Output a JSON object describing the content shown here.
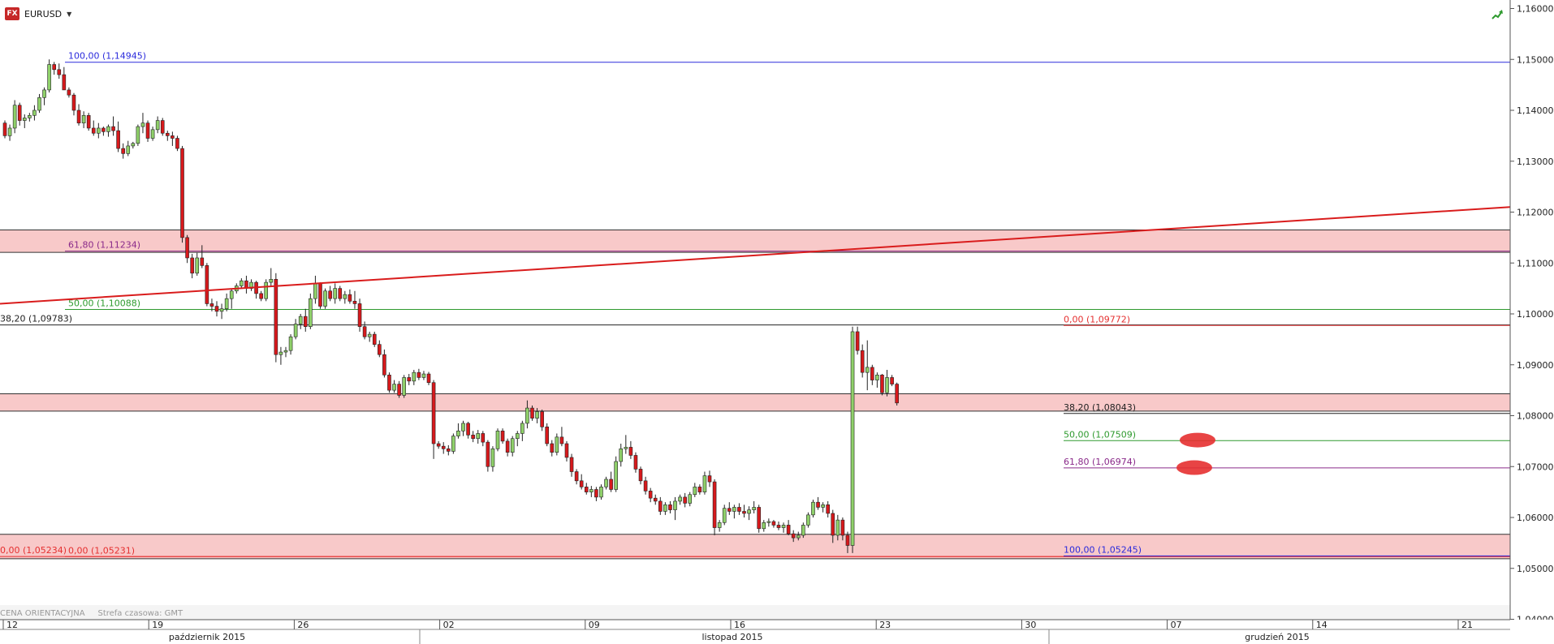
{
  "symbol": {
    "logo": "FX",
    "name": "EURUSD"
  },
  "footer": {
    "price_type": "CENA ORIENTACYJNA",
    "timezone": "Strefa czasowa: GMT"
  },
  "icons": {
    "trend": "trend-arrow-icon",
    "dropdown": "caret-down-icon"
  },
  "colors": {
    "bull": "#8fd06a",
    "bear": "#d7191c",
    "zone": "#f8c9c9",
    "fib_blue": "#2b2bdc",
    "fib_red": "#e53030",
    "fib_green": "#2e9a2e",
    "fib_purple": "#8a2a8a",
    "trendline": "#d91c1c"
  },
  "chart_data": {
    "type": "candlestick",
    "title": "EURUSD",
    "y_axis": {
      "min": 1.04,
      "max": 1.16,
      "ticks": [
        "1,04000",
        "1,05000",
        "1,06000",
        "1,07000",
        "1,08000",
        "1,09000",
        "1,10000",
        "1,11000",
        "1,12000",
        "1,13000",
        "1,14000",
        "1,15000",
        "1,16000"
      ]
    },
    "x_ticks": [
      "12",
      "19",
      "26",
      "02",
      "09",
      "16",
      "23",
      "30",
      "07",
      "14",
      "21"
    ],
    "months": [
      "październik 2015",
      "listopad 2015",
      "grudzień 2015"
    ],
    "zones": [
      {
        "from": 1.1121,
        "to": 1.1165
      },
      {
        "from": 1.0809,
        "to": 1.0843
      },
      {
        "from": 1.0519,
        "to": 1.0567
      }
    ],
    "levels": [
      {
        "label": "100,00 (1,14945)",
        "value": 1.14945,
        "color": "fib_blue",
        "label_side": "left"
      },
      {
        "label": "61,80 (1,11234)",
        "value": 1.11234,
        "color": "fib_purple",
        "label_side": "left"
      },
      {
        "label": "50,00 (1,10088)",
        "value": 1.10088,
        "color": "fib_green",
        "label_side": "left"
      },
      {
        "label": "38,20 (1,09783)",
        "value": 1.09783,
        "color": "black",
        "label_side": "edge"
      },
      {
        "label": "0,00 (1,05234)",
        "value": 1.05234,
        "color": "fib_red",
        "label_side": "edge"
      },
      {
        "label": "0,00 (1,05231)",
        "value": 1.05231,
        "color": "fib_red",
        "label_side": "left"
      },
      {
        "label": "0,00 (1,09772)",
        "value": 1.09772,
        "color": "fib_red",
        "label_side": "right"
      },
      {
        "label": "38,20 (1,08043)",
        "value": 1.08043,
        "color": "black",
        "label_side": "right"
      },
      {
        "label": "50,00 (1,07509)",
        "value": 1.07509,
        "color": "fib_green",
        "label_side": "right"
      },
      {
        "label": "61,80 (1,06974)",
        "value": 1.06974,
        "color": "fib_purple",
        "label_side": "right"
      },
      {
        "label": "100,00 (1,05245)",
        "value": 1.05245,
        "color": "fib_blue",
        "label_side": "right"
      }
    ],
    "trendline": {
      "start": 1.102,
      "end": 1.121
    },
    "targets": [
      1.0752,
      1.0698
    ],
    "candles": [
      [
        1.1375,
        1.138,
        1.1345,
        1.135
      ],
      [
        1.135,
        1.1372,
        1.134,
        1.1365
      ],
      [
        1.1365,
        1.142,
        1.1355,
        1.141
      ],
      [
        1.141,
        1.1415,
        1.137,
        1.138
      ],
      [
        1.138,
        1.1392,
        1.1365,
        1.1385
      ],
      [
        1.1385,
        1.1395,
        1.1378,
        1.139
      ],
      [
        1.139,
        1.141,
        1.138,
        1.14
      ],
      [
        1.14,
        1.1432,
        1.1395,
        1.1425
      ],
      [
        1.1425,
        1.1445,
        1.141,
        1.144
      ],
      [
        1.144,
        1.15,
        1.1435,
        1.149
      ],
      [
        1.149,
        1.1495,
        1.147,
        1.148
      ],
      [
        1.148,
        1.1492,
        1.1462,
        1.147
      ],
      [
        1.147,
        1.1485,
        1.144,
        1.144
      ],
      [
        1.144,
        1.1445,
        1.1425,
        1.143
      ],
      [
        1.143,
        1.1434,
        1.139,
        1.14
      ],
      [
        1.14,
        1.1412,
        1.137,
        1.1375
      ],
      [
        1.1375,
        1.1398,
        1.1365,
        1.139
      ],
      [
        1.139,
        1.1395,
        1.136,
        1.1365
      ],
      [
        1.1365,
        1.138,
        1.135,
        1.1355
      ],
      [
        1.1355,
        1.1375,
        1.1345,
        1.1365
      ],
      [
        1.1365,
        1.1368,
        1.135,
        1.1358
      ],
      [
        1.1358,
        1.1372,
        1.1348,
        1.1368
      ],
      [
        1.1368,
        1.1388,
        1.135,
        1.136
      ],
      [
        1.136,
        1.1378,
        1.1318,
        1.1325
      ],
      [
        1.1325,
        1.1335,
        1.1305,
        1.1315
      ],
      [
        1.1315,
        1.134,
        1.131,
        1.133
      ],
      [
        1.133,
        1.1338,
        1.1325,
        1.1335
      ],
      [
        1.1335,
        1.1372,
        1.133,
        1.1368
      ],
      [
        1.1368,
        1.1395,
        1.1355,
        1.1375
      ],
      [
        1.1375,
        1.138,
        1.1338,
        1.1345
      ],
      [
        1.1345,
        1.1368,
        1.134,
        1.1362
      ],
      [
        1.1362,
        1.1388,
        1.1355,
        1.138
      ],
      [
        1.138,
        1.1385,
        1.135,
        1.1355
      ],
      [
        1.1355,
        1.136,
        1.134,
        1.135
      ],
      [
        1.135,
        1.1358,
        1.133,
        1.1345
      ],
      [
        1.1345,
        1.135,
        1.132,
        1.1325
      ],
      [
        1.1325,
        1.133,
        1.114,
        1.115
      ],
      [
        1.115,
        1.1155,
        1.11,
        1.111
      ],
      [
        1.111,
        1.1118,
        1.107,
        1.108
      ],
      [
        1.108,
        1.112,
        1.1075,
        1.111
      ],
      [
        1.111,
        1.1135,
        1.109,
        1.1095
      ],
      [
        1.1095,
        1.11,
        1.1015,
        1.102
      ],
      [
        1.102,
        1.103,
        1.1005,
        1.1015
      ],
      [
        1.1015,
        1.1025,
        1.0995,
        1.1005
      ],
      [
        1.1005,
        1.102,
        1.099,
        1.101
      ],
      [
        1.101,
        1.104,
        1.1005,
        1.103
      ],
      [
        1.103,
        1.105,
        1.101,
        1.1045
      ],
      [
        1.1045,
        1.106,
        1.104,
        1.1055
      ],
      [
        1.1055,
        1.107,
        1.105,
        1.1065
      ],
      [
        1.1065,
        1.1075,
        1.104,
        1.105
      ],
      [
        1.105,
        1.1068,
        1.1045,
        1.1062
      ],
      [
        1.1062,
        1.1065,
        1.103,
        1.104
      ],
      [
        1.104,
        1.1045,
        1.1025,
        1.103
      ],
      [
        1.103,
        1.1068,
        1.1025,
        1.1062
      ],
      [
        1.1062,
        1.109,
        1.1055,
        1.1068
      ],
      [
        1.1068,
        1.108,
        1.0905,
        1.092
      ],
      [
        1.092,
        1.0935,
        1.09,
        1.0925
      ],
      [
        1.0925,
        1.0935,
        1.0915,
        1.0928
      ],
      [
        1.0928,
        1.096,
        1.092,
        1.0955
      ],
      [
        1.0955,
        1.099,
        1.095,
        1.098
      ],
      [
        1.098,
        1.1,
        1.097,
        1.0995
      ],
      [
        1.0995,
        1.101,
        1.0965,
        1.0975
      ],
      [
        1.0975,
        1.104,
        1.097,
        1.103
      ],
      [
        1.103,
        1.1075,
        1.102,
        1.106
      ],
      [
        1.106,
        1.1062,
        1.101,
        1.1015
      ],
      [
        1.1015,
        1.105,
        1.101,
        1.1045
      ],
      [
        1.1045,
        1.1055,
        1.1025,
        1.103
      ],
      [
        1.103,
        1.106,
        1.102,
        1.105
      ],
      [
        1.105,
        1.1055,
        1.1025,
        1.103
      ],
      [
        1.103,
        1.1045,
        1.102,
        1.1038
      ],
      [
        1.1038,
        1.1048,
        1.102,
        1.1025
      ],
      [
        1.1025,
        1.1045,
        1.101,
        1.102
      ],
      [
        1.102,
        1.103,
        1.0965,
        1.0975
      ],
      [
        1.0975,
        1.0985,
        1.095,
        1.0955
      ],
      [
        1.0955,
        1.0965,
        1.0945,
        1.096
      ],
      [
        1.096,
        1.0965,
        1.0935,
        1.094
      ],
      [
        1.094,
        1.0948,
        1.0915,
        1.092
      ],
      [
        1.092,
        1.093,
        1.0875,
        1.088
      ],
      [
        1.088,
        1.0885,
        1.0845,
        1.085
      ],
      [
        1.085,
        1.087,
        1.0845,
        1.0862
      ],
      [
        1.0862,
        1.0868,
        1.0835,
        1.084
      ],
      [
        1.084,
        1.088,
        1.0835,
        1.0875
      ],
      [
        1.0875,
        1.0882,
        1.086,
        1.0868
      ],
      [
        1.0868,
        1.089,
        1.086,
        1.0885
      ],
      [
        1.0885,
        1.0892,
        1.087,
        1.0875
      ],
      [
        1.0875,
        1.0888,
        1.087,
        1.0882
      ],
      [
        1.0882,
        1.0886,
        1.086,
        1.0865
      ],
      [
        1.0865,
        1.087,
        1.0715,
        1.0745
      ],
      [
        1.0745,
        1.075,
        1.0735,
        1.074
      ],
      [
        1.074,
        1.0748,
        1.0725,
        1.0735
      ],
      [
        1.0735,
        1.0742,
        1.0722,
        1.073
      ],
      [
        1.073,
        1.0765,
        1.0725,
        1.076
      ],
      [
        1.076,
        1.0785,
        1.0755,
        1.077
      ],
      [
        1.077,
        1.079,
        1.076,
        1.0785
      ],
      [
        1.0785,
        1.0788,
        1.0755,
        1.0762
      ],
      [
        1.0762,
        1.077,
        1.0748,
        1.0755
      ],
      [
        1.0755,
        1.0772,
        1.0745,
        1.0765
      ],
      [
        1.0765,
        1.077,
        1.074,
        1.0748
      ],
      [
        1.0748,
        1.0752,
        1.069,
        1.07
      ],
      [
        1.07,
        1.074,
        1.069,
        1.0735
      ],
      [
        1.0735,
        1.0775,
        1.073,
        1.077
      ],
      [
        1.077,
        1.0775,
        1.0745,
        1.075
      ],
      [
        1.075,
        1.0755,
        1.072,
        1.0728
      ],
      [
        1.0728,
        1.076,
        1.072,
        1.0755
      ],
      [
        1.0755,
        1.077,
        1.074,
        1.0765
      ],
      [
        1.0765,
        1.079,
        1.075,
        1.0785
      ],
      [
        1.0785,
        1.083,
        1.0775,
        1.0815
      ],
      [
        1.0815,
        1.082,
        1.079,
        1.0795
      ],
      [
        1.0795,
        1.0815,
        1.0785,
        1.0808
      ],
      [
        1.0808,
        1.0812,
        1.077,
        1.0778
      ],
      [
        1.0778,
        1.0785,
        1.074,
        1.0745
      ],
      [
        1.0745,
        1.0752,
        1.072,
        1.0728
      ],
      [
        1.0728,
        1.0765,
        1.0722,
        1.0758
      ],
      [
        1.0758,
        1.0778,
        1.074,
        1.0745
      ],
      [
        1.0745,
        1.075,
        1.071,
        1.0718
      ],
      [
        1.0718,
        1.0725,
        1.068,
        1.069
      ],
      [
        1.069,
        1.0695,
        1.0665,
        1.0672
      ],
      [
        1.0672,
        1.0685,
        1.0655,
        1.066
      ],
      [
        1.066,
        1.0668,
        1.0645,
        1.065
      ],
      [
        1.065,
        1.0662,
        1.064,
        1.0655
      ],
      [
        1.0655,
        1.066,
        1.0632,
        1.064
      ],
      [
        1.064,
        1.0665,
        1.0635,
        1.066
      ],
      [
        1.066,
        1.068,
        1.0655,
        1.0675
      ],
      [
        1.0675,
        1.069,
        1.065,
        1.0655
      ],
      [
        1.0655,
        1.072,
        1.065,
        1.071
      ],
      [
        1.071,
        1.0745,
        1.07,
        1.0735
      ],
      [
        1.0735,
        1.0762,
        1.0725,
        1.0738
      ],
      [
        1.0738,
        1.075,
        1.0715,
        1.0722
      ],
      [
        1.0722,
        1.0728,
        1.0688,
        1.0695
      ],
      [
        1.0695,
        1.07,
        1.0665,
        1.0672
      ],
      [
        1.0672,
        1.068,
        1.0645,
        1.0652
      ],
      [
        1.0652,
        1.0658,
        1.063,
        1.0638
      ],
      [
        1.0638,
        1.0645,
        1.0625,
        1.0632
      ],
      [
        1.0632,
        1.064,
        1.0605,
        1.0612
      ],
      [
        1.0612,
        1.063,
        1.0605,
        1.0625
      ],
      [
        1.0625,
        1.0632,
        1.0608,
        1.0615
      ],
      [
        1.0615,
        1.064,
        1.0595,
        1.0632
      ],
      [
        1.0632,
        1.0645,
        1.0625,
        1.064
      ],
      [
        1.064,
        1.0648,
        1.062,
        1.0628
      ],
      [
        1.0628,
        1.065,
        1.0622,
        1.0645
      ],
      [
        1.0645,
        1.0668,
        1.064,
        1.066
      ],
      [
        1.066,
        1.0665,
        1.0645,
        1.065
      ],
      [
        1.065,
        1.069,
        1.0645,
        1.0682
      ],
      [
        1.0682,
        1.0692,
        1.066,
        1.067
      ],
      [
        1.067,
        1.0675,
        1.0565,
        1.058
      ],
      [
        1.058,
        1.0595,
        1.0572,
        1.059
      ],
      [
        1.059,
        1.0625,
        1.0585,
        1.0618
      ],
      [
        1.0618,
        1.063,
        1.0605,
        1.0612
      ],
      [
        1.0612,
        1.0625,
        1.0598,
        1.062
      ],
      [
        1.062,
        1.0628,
        1.0605,
        1.0612
      ],
      [
        1.0612,
        1.0625,
        1.06,
        1.0608
      ],
      [
        1.0608,
        1.0622,
        1.0595,
        1.0615
      ],
      [
        1.0615,
        1.0632,
        1.0608,
        1.062
      ],
      [
        1.062,
        1.0625,
        1.057,
        1.0578
      ],
      [
        1.0578,
        1.0595,
        1.0572,
        1.059
      ],
      [
        1.059,
        1.0598,
        1.0582,
        1.0592
      ],
      [
        1.0592,
        1.0595,
        1.058,
        1.0585
      ],
      [
        1.0585,
        1.0592,
        1.0575,
        1.058
      ],
      [
        1.058,
        1.059,
        1.057,
        1.0585
      ],
      [
        1.0585,
        1.0595,
        1.0565,
        1.0568
      ],
      [
        1.0568,
        1.0575,
        1.0552,
        1.056
      ],
      [
        1.056,
        1.0572,
        1.0555,
        1.0565
      ],
      [
        1.0565,
        1.059,
        1.056,
        1.0585
      ],
      [
        1.0585,
        1.061,
        1.058,
        1.0605
      ],
      [
        1.0605,
        1.0635,
        1.06,
        1.063
      ],
      [
        1.063,
        1.064,
        1.0615,
        1.062
      ],
      [
        1.062,
        1.063,
        1.061,
        1.0625
      ],
      [
        1.0625,
        1.0632,
        1.06,
        1.0608
      ],
      [
        1.0608,
        1.0615,
        1.055,
        1.0565
      ],
      [
        1.0565,
        1.0605,
        1.0555,
        1.0595
      ],
      [
        1.0595,
        1.06,
        1.0555,
        1.0565
      ],
      [
        1.0565,
        1.0572,
        1.053,
        1.0545
      ],
      [
        1.0545,
        1.0975,
        1.053,
        1.0965
      ],
      [
        1.0965,
        1.0975,
        1.092,
        1.0928
      ],
      [
        1.0928,
        1.094,
        1.0875,
        1.0885
      ],
      [
        1.0885,
        1.0948,
        1.085,
        1.0895
      ],
      [
        1.0895,
        1.09,
        1.086,
        1.087
      ],
      [
        1.087,
        1.0885,
        1.0855,
        1.088
      ],
      [
        1.088,
        1.0882,
        1.084,
        1.0845
      ],
      [
        1.0845,
        1.089,
        1.0838,
        1.0875
      ],
      [
        1.0875,
        1.088,
        1.0858,
        1.0862
      ],
      [
        1.0862,
        1.0865,
        1.082,
        1.0825
      ]
    ]
  }
}
